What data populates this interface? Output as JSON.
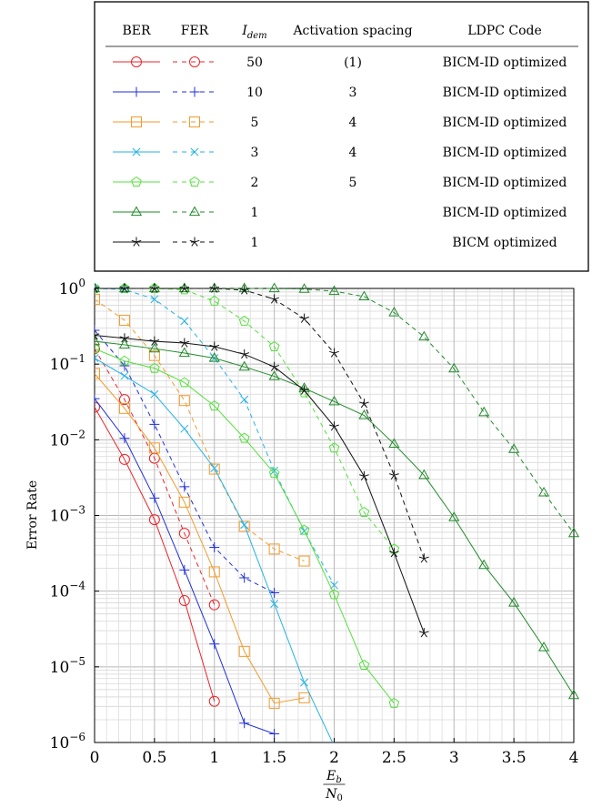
{
  "chart_data": {
    "type": "line",
    "xlabel": {
      "num": "E",
      "num_sub": "b",
      "den": "N",
      "den_sub": "0"
    },
    "ylabel": "Error Rate",
    "xlim": [
      0,
      4
    ],
    "ylim": [
      1e-06,
      1
    ],
    "yscale": "log",
    "xticks": [
      0,
      0.5,
      1,
      1.5,
      2,
      2.5,
      3,
      3.5,
      4
    ],
    "xtick_labels": [
      "0",
      "0.5",
      "1",
      "1.5",
      "2",
      "2.5",
      "3",
      "3.5",
      "4"
    ],
    "ytick_labels": [
      {
        "exp": 0,
        "base": "10",
        "power": "0"
      },
      {
        "exp": -1,
        "base": "10",
        "power": "−1"
      },
      {
        "exp": -2,
        "base": "10",
        "power": "−2"
      },
      {
        "exp": -3,
        "base": "10",
        "power": "−3"
      },
      {
        "exp": -4,
        "base": "10",
        "power": "−4"
      },
      {
        "exp": -5,
        "base": "10",
        "power": "−5"
      },
      {
        "exp": -6,
        "base": "10",
        "power": "−6"
      }
    ],
    "grid": true,
    "legend_position": "top",
    "legend_headers": {
      "ber": "BER",
      "fer": "FER",
      "idem_main": "I",
      "idem_sub": "dem",
      "spacing": "Activation spacing",
      "code": "LDPC Code"
    },
    "groups": [
      {
        "color": "#e8242a",
        "marker": "circle",
        "idem": "50",
        "spacing": "(1)",
        "code": "BICM-ID optimized",
        "ber": {
          "x": [
            0,
            0.25,
            0.5,
            0.75,
            1.0
          ],
          "y": [
            0.027,
            0.0055,
            0.00088,
            7.5e-05,
            3.5e-06
          ]
        },
        "fer": {
          "x": [
            0,
            0.25,
            0.5,
            0.75,
            1.0
          ],
          "y": [
            0.16,
            0.034,
            0.0057,
            0.00058,
            6.6e-05
          ]
        }
      },
      {
        "color": "#1f2fd6",
        "marker": "plus",
        "idem": "10",
        "spacing": "3",
        "code": "BICM-ID optimized",
        "ber": {
          "x": [
            0,
            0.25,
            0.5,
            0.75,
            1.0,
            1.25,
            1.5
          ],
          "y": [
            0.035,
            0.0105,
            0.0017,
            0.00019,
            2e-05,
            1.8e-06,
            1.3e-06
          ]
        },
        "fer": {
          "x": [
            0,
            0.25,
            0.5,
            0.75,
            1.0,
            1.25,
            1.5
          ],
          "y": [
            0.28,
            0.095,
            0.016,
            0.0024,
            0.00038,
            0.00015,
            9.5e-05
          ]
        }
      },
      {
        "color": "#f39a2b",
        "marker": "square",
        "idem": "5",
        "spacing": "4",
        "code": "BICM-ID optimized",
        "ber": {
          "x": [
            0,
            0.25,
            0.5,
            0.75,
            1.0,
            1.25,
            1.5,
            1.75
          ],
          "y": [
            0.075,
            0.026,
            0.0078,
            0.0015,
            0.00018,
            1.6e-05,
            3.3e-06,
            3.9e-06
          ]
        },
        "fer": {
          "x": [
            0,
            0.25,
            0.5,
            0.75,
            1.0,
            1.25,
            1.5,
            1.75
          ],
          "y": [
            0.72,
            0.38,
            0.13,
            0.033,
            0.0041,
            0.00072,
            0.00036,
            0.00025
          ]
        }
      },
      {
        "color": "#25b2e6",
        "marker": "cross",
        "idem": "3",
        "spacing": "4",
        "code": "BICM-ID optimized",
        "ber": {
          "x": [
            0,
            0.25,
            0.5,
            0.75,
            1.0,
            1.25,
            1.5,
            1.75,
            2.0
          ],
          "y": [
            0.12,
            0.07,
            0.04,
            0.014,
            0.0042,
            0.00075,
            6.8e-05,
            6.2e-06,
            9e-07
          ]
        },
        "fer": {
          "x": [
            0,
            0.25,
            0.5,
            0.75,
            1.0,
            1.25,
            1.5,
            1.75,
            2.0
          ],
          "y": [
            1.0,
            0.97,
            0.72,
            0.37,
            0.12,
            0.034,
            0.0039,
            0.00062,
            0.00012
          ]
        }
      },
      {
        "color": "#55e03c",
        "marker": "pentagon",
        "idem": "2",
        "spacing": "5",
        "code": "BICM-ID optimized",
        "ber": {
          "x": [
            0,
            0.25,
            0.5,
            0.75,
            1.0,
            1.25,
            1.5,
            1.75,
            2.0,
            2.25,
            2.5
          ],
          "y": [
            0.16,
            0.11,
            0.088,
            0.057,
            0.028,
            0.0105,
            0.0036,
            0.00064,
            9e-05,
            1.05e-05,
            3.3e-06
          ]
        },
        "fer": {
          "x": [
            0,
            0.25,
            0.5,
            0.75,
            1.0,
            1.25,
            1.5,
            1.75,
            2.0,
            2.25,
            2.5
          ],
          "y": [
            1.0,
            1.0,
            1.0,
            0.96,
            0.68,
            0.37,
            0.17,
            0.042,
            0.0078,
            0.0011,
            0.00036
          ]
        }
      },
      {
        "color": "#218a2a",
        "marker": "triangle",
        "idem": "1",
        "spacing": "",
        "code": "BICM-ID optimized",
        "ber": {
          "x": [
            0,
            0.25,
            0.5,
            0.75,
            1.0,
            1.25,
            1.5,
            1.75,
            2.0,
            2.25,
            2.5,
            2.75,
            3.0,
            3.25,
            3.5,
            3.75,
            4.0
          ],
          "y": [
            0.2,
            0.18,
            0.16,
            0.14,
            0.12,
            0.092,
            0.069,
            0.048,
            0.032,
            0.021,
            0.0088,
            0.0034,
            0.00094,
            0.00022,
            7e-05,
            1.8e-05,
            4.2e-06
          ]
        },
        "fer": {
          "x": [
            0,
            0.25,
            0.5,
            0.75,
            1.0,
            1.25,
            1.5,
            1.75,
            2.0,
            2.25,
            2.5,
            2.75,
            3.0,
            3.25,
            3.5,
            3.75,
            4.0
          ],
          "y": [
            1.0,
            1.0,
            1.0,
            1.0,
            1.0,
            1.0,
            1.0,
            0.98,
            0.92,
            0.78,
            0.48,
            0.23,
            0.087,
            0.023,
            0.0075,
            0.002,
            0.00058
          ]
        }
      },
      {
        "color": "#111111",
        "marker": "star",
        "idem": "1",
        "spacing": "",
        "code": "BICM optimized",
        "ber": {
          "x": [
            0,
            0.25,
            0.5,
            0.75,
            1.0,
            1.25,
            1.5,
            1.75,
            2.0,
            2.25,
            2.5,
            2.75
          ],
          "y": [
            0.24,
            0.22,
            0.2,
            0.19,
            0.17,
            0.135,
            0.092,
            0.045,
            0.015,
            0.0033,
            0.00032,
            2.8e-05
          ]
        },
        "fer": {
          "x": [
            0,
            0.25,
            0.5,
            0.75,
            1.0,
            1.25,
            1.5,
            1.75,
            2.0,
            2.25,
            2.5,
            2.75
          ],
          "y": [
            1.0,
            1.0,
            1.0,
            1.0,
            1.0,
            0.95,
            0.72,
            0.4,
            0.14,
            0.03,
            0.0034,
            0.00027
          ]
        }
      }
    ]
  }
}
